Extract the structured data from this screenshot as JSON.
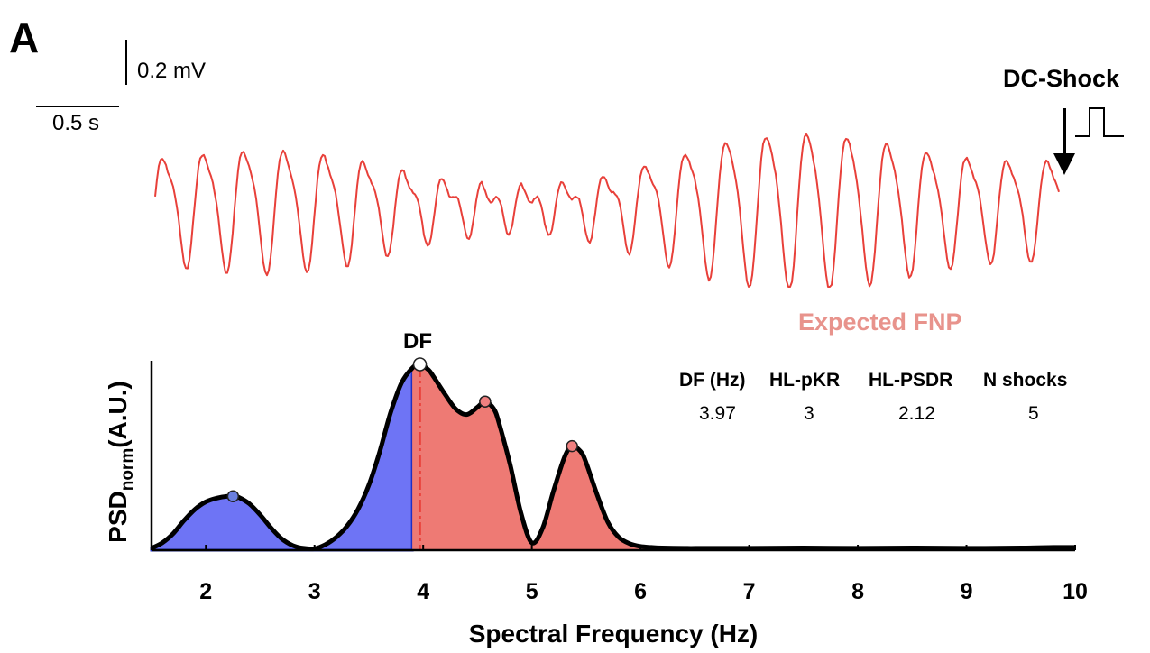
{
  "panel_label": "A",
  "ecg": {
    "scale_voltage": "0.2 mV",
    "scale_time": "0.5 s",
    "event_label": "DC-Shock",
    "trace_color": "#e8403a"
  },
  "annotations": {
    "title": "Expected FNP",
    "df_marker": "DF"
  },
  "stats": {
    "headers": [
      "DF (Hz)",
      "HL-pKR",
      "HL-PSDR",
      "N shocks"
    ],
    "values": [
      "3.97",
      "3",
      "2.12",
      "5"
    ]
  },
  "colors": {
    "blue_fill": "#6e74f5",
    "blue_edge": "#1f2fc4",
    "red_fill": "#ee7a74",
    "marker_red": "#f08080",
    "marker_blue": "#6a7fe0",
    "title_color": "#e8938c",
    "df_line": "#e8403a"
  },
  "chart_data": {
    "type": "area",
    "xlabel": "Spectral Frequency (Hz)",
    "ylabel_main": "PSD",
    "ylabel_sub": "norm",
    "ylabel_suffix": "(A.U.)",
    "xlim": [
      1.5,
      10
    ],
    "ylim": [
      0,
      1
    ],
    "xticks": [
      2,
      3,
      4,
      5,
      6,
      7,
      8,
      9,
      10
    ],
    "tick_labels": [
      "2",
      "3",
      "4",
      "5",
      "6",
      "7",
      "8",
      "9",
      "10"
    ],
    "dominant_frequency": 3.97,
    "split_frequency": 3.9,
    "peaks": [
      {
        "x": 2.25,
        "y": 0.29,
        "color": "blue"
      },
      {
        "x": 3.97,
        "y": 1.0,
        "color": "df"
      },
      {
        "x": 4.57,
        "y": 0.8,
        "color": "red"
      },
      {
        "x": 5.37,
        "y": 0.56,
        "color": "red"
      }
    ],
    "x": [
      1.5,
      1.6,
      1.7,
      1.8,
      1.9,
      2.0,
      2.1,
      2.2,
      2.25,
      2.3,
      2.4,
      2.5,
      2.6,
      2.7,
      2.8,
      2.9,
      3.0,
      3.1,
      3.2,
      3.3,
      3.4,
      3.5,
      3.6,
      3.7,
      3.8,
      3.9,
      3.97,
      4.05,
      4.1,
      4.2,
      4.3,
      4.4,
      4.5,
      4.57,
      4.65,
      4.7,
      4.8,
      4.9,
      5.0,
      5.1,
      5.2,
      5.3,
      5.37,
      5.45,
      5.5,
      5.6,
      5.7,
      5.8,
      5.9,
      6.0,
      6.1,
      6.2,
      6.4,
      6.6,
      7.0,
      7.5,
      8.0,
      8.5,
      9.0,
      9.5,
      9.8,
      10.0
    ],
    "y": [
      0.01,
      0.04,
      0.09,
      0.16,
      0.22,
      0.26,
      0.28,
      0.29,
      0.29,
      0.285,
      0.25,
      0.19,
      0.12,
      0.06,
      0.025,
      0.01,
      0.008,
      0.03,
      0.07,
      0.13,
      0.22,
      0.35,
      0.53,
      0.74,
      0.9,
      0.98,
      1.0,
      0.97,
      0.93,
      0.84,
      0.76,
      0.73,
      0.77,
      0.8,
      0.76,
      0.68,
      0.46,
      0.2,
      0.04,
      0.12,
      0.32,
      0.5,
      0.56,
      0.53,
      0.47,
      0.3,
      0.15,
      0.07,
      0.035,
      0.02,
      0.015,
      0.012,
      0.01,
      0.01,
      0.01,
      0.012,
      0.01,
      0.012,
      0.01,
      0.012,
      0.015,
      0.015
    ]
  }
}
